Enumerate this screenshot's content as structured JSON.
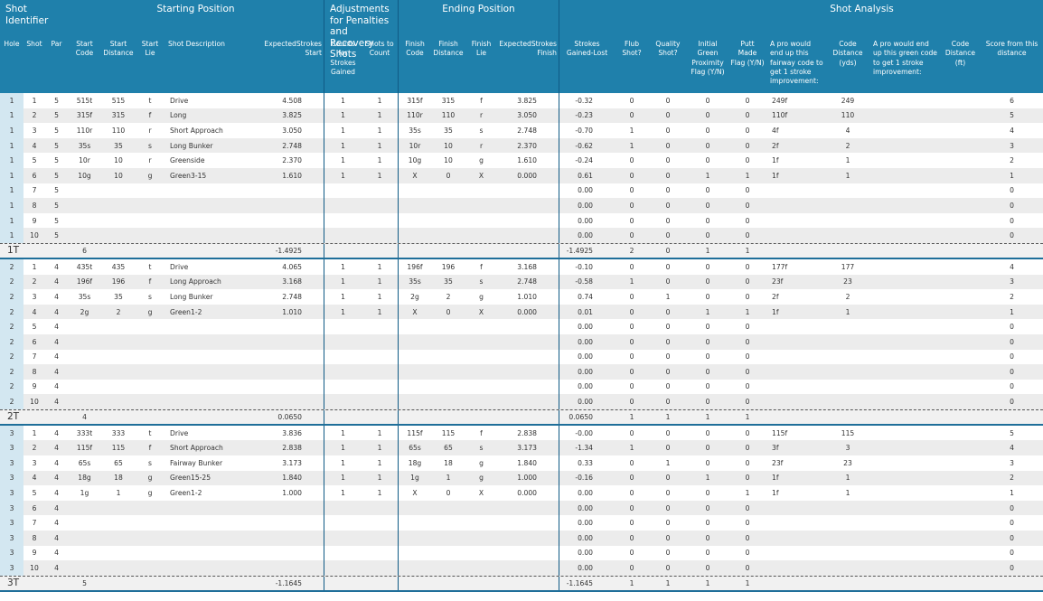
{
  "header_groups": [
    {
      "label": "Shot Identifier",
      "span": 3
    },
    {
      "label": "Starting Position",
      "span": 5
    },
    {
      "label": "Adjustments for Penalties and Recovery Shots",
      "span": 2
    },
    {
      "label": "Ending Position",
      "span": 4
    },
    {
      "label": "Shot Analysis",
      "span": 10
    }
  ],
  "columns": [
    "Hole",
    "Shot",
    "Par",
    "Start Code",
    "Start Distance",
    "Start Lie",
    "Shot Description",
    "ExpectedStrokes Start",
    "Counts for Strokes Gained",
    "Shots to Count",
    "Finish Code",
    "Finish Distance",
    "Finish Lie",
    "ExpectedStrokes Finish",
    "Strokes Gained-Lost",
    "Flub Shot?",
    "Quality Shot?",
    "Initial Green Proximity Flag (Y/N)",
    "Putt Made Flag (Y/N)",
    "A pro would end up this fairway code to get 1 stroke improvement:",
    "Code Distance (yds)",
    "A pro would end up this green code to get 1 stroke improvement:",
    "Code Distance (ft)",
    "Score from this distance"
  ],
  "holes": [
    {
      "rows": [
        [
          "1",
          "1",
          "5",
          "515t",
          "515",
          "t",
          "Drive",
          "4.508",
          "1",
          "1",
          "315f",
          "315",
          "f",
          "3.825",
          "-0.32",
          "0",
          "0",
          "0",
          "0",
          "249f",
          "249",
          null,
          null,
          "6"
        ],
        [
          "1",
          "2",
          "5",
          "315f",
          "315",
          "f",
          "Long",
          "3.825",
          "1",
          "1",
          "110r",
          "110",
          "r",
          "3.050",
          "-0.23",
          "0",
          "0",
          "0",
          "0",
          "110f",
          "110",
          null,
          null,
          "5"
        ],
        [
          "1",
          "3",
          "5",
          "110r",
          "110",
          "r",
          "Short Approach",
          "3.050",
          "1",
          "1",
          "35s",
          "35",
          "s",
          "2.748",
          "-0.70",
          "1",
          "0",
          "0",
          "0",
          "4f",
          "4",
          null,
          null,
          "4"
        ],
        [
          "1",
          "4",
          "5",
          "35s",
          "35",
          "s",
          "Long Bunker",
          "2.748",
          "1",
          "1",
          "10r",
          "10",
          "r",
          "2.370",
          "-0.62",
          "1",
          "0",
          "0",
          "0",
          "2f",
          "2",
          null,
          null,
          "3"
        ],
        [
          "1",
          "5",
          "5",
          "10r",
          "10",
          "r",
          "Greenside",
          "2.370",
          "1",
          "1",
          "10g",
          "10",
          "g",
          "1.610",
          "-0.24",
          "0",
          "0",
          "0",
          "0",
          "1f",
          "1",
          null,
          null,
          "2"
        ],
        [
          "1",
          "6",
          "5",
          "10g",
          "10",
          "g",
          "Green3-15",
          "1.610",
          "1",
          "1",
          "X",
          "0",
          "X",
          "0.000",
          "0.61",
          "0",
          "0",
          "1",
          "1",
          "1f",
          "1",
          null,
          null,
          "1"
        ],
        [
          "1",
          "7",
          "5",
          null,
          null,
          null,
          null,
          null,
          null,
          null,
          null,
          null,
          null,
          null,
          "0.00",
          "0",
          "0",
          "0",
          "0",
          null,
          null,
          null,
          null,
          "0"
        ],
        [
          "1",
          "8",
          "5",
          null,
          null,
          null,
          null,
          null,
          null,
          null,
          null,
          null,
          null,
          null,
          "0.00",
          "0",
          "0",
          "0",
          "0",
          null,
          null,
          null,
          null,
          "0"
        ],
        [
          "1",
          "9",
          "5",
          null,
          null,
          null,
          null,
          null,
          null,
          null,
          null,
          null,
          null,
          null,
          "0.00",
          "0",
          "0",
          "0",
          "0",
          null,
          null,
          null,
          null,
          "0"
        ],
        [
          "1",
          "10",
          "5",
          null,
          null,
          null,
          null,
          null,
          null,
          null,
          null,
          null,
          null,
          null,
          "0.00",
          "0",
          "0",
          "0",
          "0",
          null,
          null,
          null,
          null,
          "0"
        ]
      ],
      "total": [
        "1T",
        null,
        null,
        "6",
        null,
        null,
        null,
        "-1.4925",
        null,
        null,
        null,
        null,
        null,
        null,
        "-1.4925",
        "2",
        "0",
        "1",
        "1",
        null,
        null,
        null,
        null,
        null
      ]
    },
    {
      "rows": [
        [
          "2",
          "1",
          "4",
          "435t",
          "435",
          "t",
          "Drive",
          "4.065",
          "1",
          "1",
          "196f",
          "196",
          "f",
          "3.168",
          "-0.10",
          "0",
          "0",
          "0",
          "0",
          "177f",
          "177",
          null,
          null,
          "4"
        ],
        [
          "2",
          "2",
          "4",
          "196f",
          "196",
          "f",
          "Long Approach",
          "3.168",
          "1",
          "1",
          "35s",
          "35",
          "s",
          "2.748",
          "-0.58",
          "1",
          "0",
          "0",
          "0",
          "23f",
          "23",
          null,
          null,
          "3"
        ],
        [
          "2",
          "3",
          "4",
          "35s",
          "35",
          "s",
          "Long Bunker",
          "2.748",
          "1",
          "1",
          "2g",
          "2",
          "g",
          "1.010",
          "0.74",
          "0",
          "1",
          "0",
          "0",
          "2f",
          "2",
          null,
          null,
          "2"
        ],
        [
          "2",
          "4",
          "4",
          "2g",
          "2",
          "g",
          "Green1-2",
          "1.010",
          "1",
          "1",
          "X",
          "0",
          "X",
          "0.000",
          "0.01",
          "0",
          "0",
          "1",
          "1",
          "1f",
          "1",
          null,
          null,
          "1"
        ],
        [
          "2",
          "5",
          "4",
          null,
          null,
          null,
          null,
          null,
          null,
          null,
          null,
          null,
          null,
          null,
          "0.00",
          "0",
          "0",
          "0",
          "0",
          null,
          null,
          null,
          null,
          "0"
        ],
        [
          "2",
          "6",
          "4",
          null,
          null,
          null,
          null,
          null,
          null,
          null,
          null,
          null,
          null,
          null,
          "0.00",
          "0",
          "0",
          "0",
          "0",
          null,
          null,
          null,
          null,
          "0"
        ],
        [
          "2",
          "7",
          "4",
          null,
          null,
          null,
          null,
          null,
          null,
          null,
          null,
          null,
          null,
          null,
          "0.00",
          "0",
          "0",
          "0",
          "0",
          null,
          null,
          null,
          null,
          "0"
        ],
        [
          "2",
          "8",
          "4",
          null,
          null,
          null,
          null,
          null,
          null,
          null,
          null,
          null,
          null,
          null,
          "0.00",
          "0",
          "0",
          "0",
          "0",
          null,
          null,
          null,
          null,
          "0"
        ],
        [
          "2",
          "9",
          "4",
          null,
          null,
          null,
          null,
          null,
          null,
          null,
          null,
          null,
          null,
          null,
          "0.00",
          "0",
          "0",
          "0",
          "0",
          null,
          null,
          null,
          null,
          "0"
        ],
        [
          "2",
          "10",
          "4",
          null,
          null,
          null,
          null,
          null,
          null,
          null,
          null,
          null,
          null,
          null,
          "0.00",
          "0",
          "0",
          "0",
          "0",
          null,
          null,
          null,
          null,
          "0"
        ]
      ],
      "total": [
        "2T",
        null,
        null,
        "4",
        null,
        null,
        null,
        "0.0650",
        null,
        null,
        null,
        null,
        null,
        null,
        "0.0650",
        "1",
        "1",
        "1",
        "1",
        null,
        null,
        null,
        null,
        null
      ]
    },
    {
      "rows": [
        [
          "3",
          "1",
          "4",
          "333t",
          "333",
          "t",
          "Drive",
          "3.836",
          "1",
          "1",
          "115f",
          "115",
          "f",
          "2.838",
          "-0.00",
          "0",
          "0",
          "0",
          "0",
          "115f",
          "115",
          null,
          null,
          "5"
        ],
        [
          "3",
          "2",
          "4",
          "115f",
          "115",
          "f",
          "Short Approach",
          "2.838",
          "1",
          "1",
          "65s",
          "65",
          "s",
          "3.173",
          "-1.34",
          "1",
          "0",
          "0",
          "0",
          "3f",
          "3",
          null,
          null,
          "4"
        ],
        [
          "3",
          "3",
          "4",
          "65s",
          "65",
          "s",
          "Fairway Bunker",
          "3.173",
          "1",
          "1",
          "18g",
          "18",
          "g",
          "1.840",
          "0.33",
          "0",
          "1",
          "0",
          "0",
          "23f",
          "23",
          null,
          null,
          "3"
        ],
        [
          "3",
          "4",
          "4",
          "18g",
          "18",
          "g",
          "Green15-25",
          "1.840",
          "1",
          "1",
          "1g",
          "1",
          "g",
          "1.000",
          "-0.16",
          "0",
          "0",
          "1",
          "0",
          "1f",
          "1",
          null,
          null,
          "2"
        ],
        [
          "3",
          "5",
          "4",
          "1g",
          "1",
          "g",
          "Green1-2",
          "1.000",
          "1",
          "1",
          "X",
          "0",
          "X",
          "0.000",
          "0.00",
          "0",
          "0",
          "0",
          "1",
          "1f",
          "1",
          null,
          null,
          "1"
        ],
        [
          "3",
          "6",
          "4",
          null,
          null,
          null,
          null,
          null,
          null,
          null,
          null,
          null,
          null,
          null,
          "0.00",
          "0",
          "0",
          "0",
          "0",
          null,
          null,
          null,
          null,
          "0"
        ],
        [
          "3",
          "7",
          "4",
          null,
          null,
          null,
          null,
          null,
          null,
          null,
          null,
          null,
          null,
          null,
          "0.00",
          "0",
          "0",
          "0",
          "0",
          null,
          null,
          null,
          null,
          "0"
        ],
        [
          "3",
          "8",
          "4",
          null,
          null,
          null,
          null,
          null,
          null,
          null,
          null,
          null,
          null,
          null,
          "0.00",
          "0",
          "0",
          "0",
          "0",
          null,
          null,
          null,
          null,
          "0"
        ],
        [
          "3",
          "9",
          "4",
          null,
          null,
          null,
          null,
          null,
          null,
          null,
          null,
          null,
          null,
          null,
          "0.00",
          "0",
          "0",
          "0",
          "0",
          null,
          null,
          null,
          null,
          "0"
        ],
        [
          "3",
          "10",
          "4",
          null,
          null,
          null,
          null,
          null,
          null,
          null,
          null,
          null,
          null,
          null,
          "0.00",
          "0",
          "0",
          "0",
          "0",
          null,
          null,
          null,
          null,
          "0"
        ]
      ],
      "total": [
        "3T",
        null,
        null,
        "5",
        null,
        null,
        null,
        "-1.1645",
        null,
        null,
        null,
        null,
        null,
        null,
        "-1.1645",
        "1",
        "1",
        "1",
        "1",
        null,
        null,
        null,
        null,
        null
      ]
    }
  ]
}
